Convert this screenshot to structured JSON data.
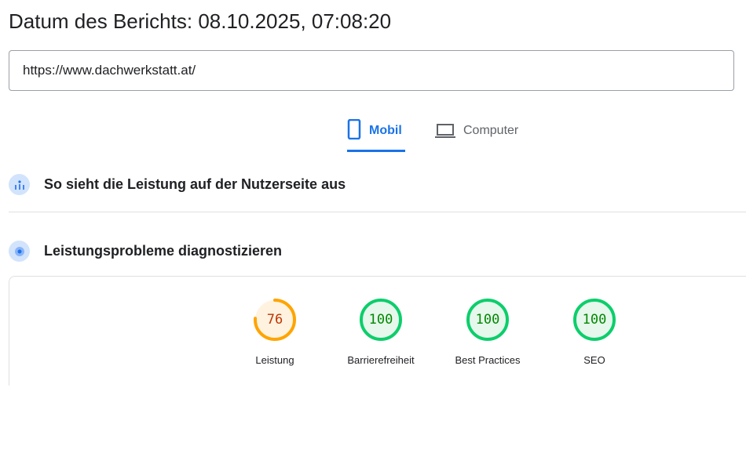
{
  "header": {
    "title": "Datum des Berichts: 08.10.2025, 07:08:20"
  },
  "url_input": {
    "value": "https://www.dachwerkstatt.at/"
  },
  "tabs": [
    {
      "label": "Mobil",
      "icon": "smartphone-icon",
      "active": true
    },
    {
      "label": "Computer",
      "icon": "laptop-icon",
      "active": false
    }
  ],
  "sections": [
    {
      "title": "So sieht die Leistung auf der Nutzerseite aus",
      "icon": "field-data-icon"
    },
    {
      "title": "Leistungsprobleme diagnostizieren",
      "icon": "lab-data-icon"
    }
  ],
  "scores": [
    {
      "label": "Leistung",
      "value": "76",
      "fraction": 0.76,
      "color": "#ffa400",
      "text_color": "#c33300",
      "bg": "#fff3e0"
    },
    {
      "label": "Barrierefreiheit",
      "value": "100",
      "fraction": 1.0,
      "color": "#0cce6b",
      "text_color": "#008800",
      "bg": "#e6f7ec"
    },
    {
      "label": "Best Practices",
      "value": "100",
      "fraction": 1.0,
      "color": "#0cce6b",
      "text_color": "#008800",
      "bg": "#e6f7ec"
    },
    {
      "label": "SEO",
      "value": "100",
      "fraction": 1.0,
      "color": "#0cce6b",
      "text_color": "#008800",
      "bg": "#e6f7ec"
    }
  ]
}
